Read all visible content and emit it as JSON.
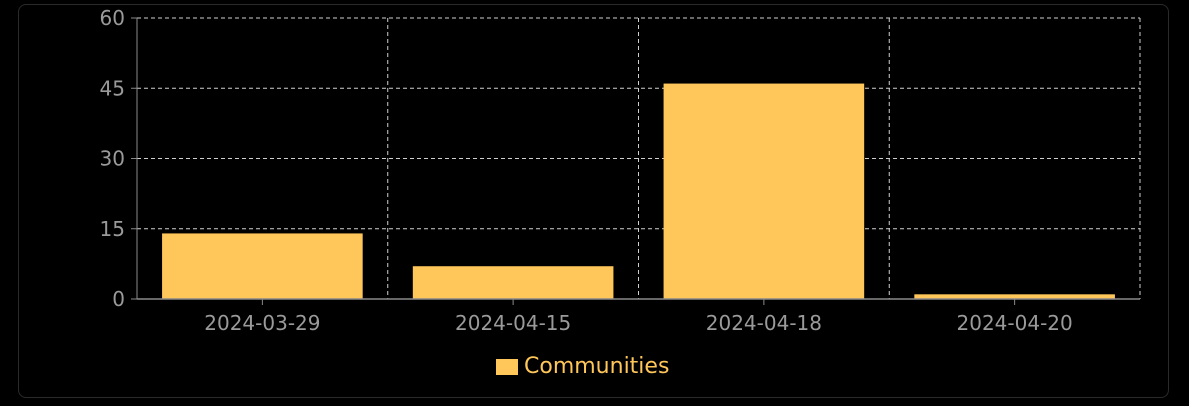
{
  "chart_data": {
    "type": "bar",
    "categories": [
      "2024-03-29",
      "2024-04-15",
      "2024-04-18",
      "2024-04-20"
    ],
    "series": [
      {
        "name": "Communities",
        "values": [
          14,
          7,
          46,
          1
        ]
      }
    ],
    "title": "",
    "xlabel": "",
    "ylabel": "",
    "ylim": [
      0,
      60
    ],
    "yticks": [
      "0",
      "15",
      "30",
      "45",
      "60"
    ],
    "grid": true,
    "legend_position": "bottom-center"
  },
  "colors": {
    "bar": "#ffc75a",
    "legend_text": "#ffc75a",
    "grid": "#cfcfcf",
    "axis": "#8a8a8a",
    "tick_text": "#9a9a9a"
  }
}
